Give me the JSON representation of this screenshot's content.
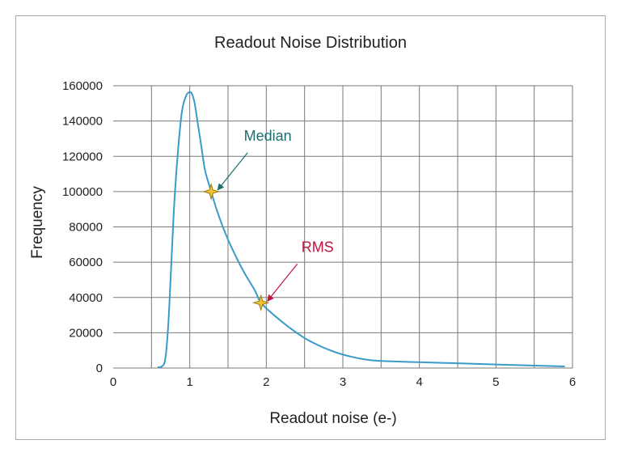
{
  "chart_data": {
    "type": "line",
    "title": "Readout Noise Distribution",
    "xlabel": "Readout noise (e-)",
    "ylabel": "Frequency",
    "xlim": [
      0,
      6
    ],
    "ylim": [
      0,
      160000
    ],
    "x_ticks": [
      0,
      1,
      2,
      3,
      4,
      5,
      6
    ],
    "y_ticks": [
      0,
      20000,
      40000,
      60000,
      80000,
      100000,
      120000,
      140000,
      160000
    ],
    "x_gridlines": [
      0.5,
      1,
      1.5,
      2,
      2.5,
      3,
      3.5,
      4,
      4.5,
      5,
      5.5,
      6
    ],
    "grid": true,
    "legend": "none",
    "line_color": "#3a9bc9",
    "series": [
      {
        "points": [
          [
            0.58,
            500
          ],
          [
            0.63,
            800
          ],
          [
            0.68,
            5000
          ],
          [
            0.72,
            25000
          ],
          [
            0.76,
            60000
          ],
          [
            0.8,
            95000
          ],
          [
            0.85,
            125000
          ],
          [
            0.9,
            146000
          ],
          [
            0.95,
            154000
          ],
          [
            0.98,
            156000
          ],
          [
            1.02,
            156000
          ],
          [
            1.06,
            151000
          ],
          [
            1.1,
            140000
          ],
          [
            1.15,
            126000
          ],
          [
            1.2,
            112000
          ],
          [
            1.28,
            100000
          ],
          [
            1.35,
            90000
          ],
          [
            1.45,
            78000
          ],
          [
            1.55,
            68000
          ],
          [
            1.7,
            55000
          ],
          [
            1.85,
            44000
          ],
          [
            1.93,
            37000
          ],
          [
            2.1,
            30000
          ],
          [
            2.3,
            23000
          ],
          [
            2.5,
            17000
          ],
          [
            2.7,
            12500
          ],
          [
            2.9,
            9000
          ],
          [
            3.1,
            6500
          ],
          [
            3.3,
            4800
          ],
          [
            3.5,
            4000
          ],
          [
            4.0,
            3300
          ],
          [
            4.5,
            2700
          ],
          [
            5.0,
            2000
          ],
          [
            5.5,
            1400
          ],
          [
            5.9,
            900
          ]
        ]
      }
    ],
    "annotations": [
      {
        "label": "Median",
        "x": 1.28,
        "y": 100000,
        "color": "#1e6e6e"
      },
      {
        "label": "RMS",
        "x": 1.93,
        "y": 37000,
        "color": "#c0143c"
      }
    ]
  }
}
